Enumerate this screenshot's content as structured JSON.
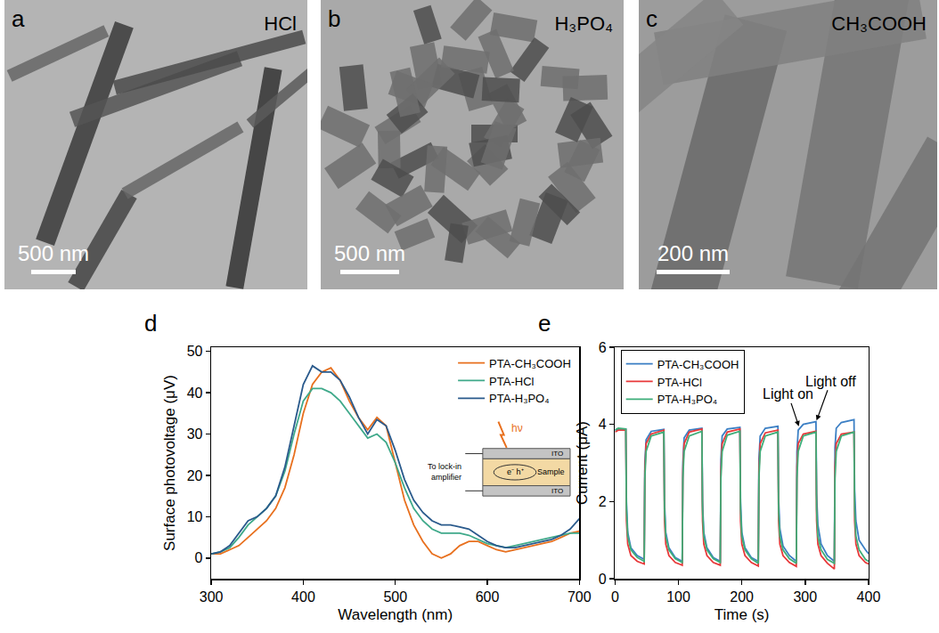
{
  "images": [
    {
      "label": "a",
      "title": "HCl",
      "scale_bar": "500 nm"
    },
    {
      "label": "b",
      "title": "H₃PO₄",
      "scale_bar": "500 nm"
    },
    {
      "label": "c",
      "title": "CH₃COOH",
      "scale_bar": "200 nm"
    }
  ],
  "chart_data": [
    {
      "type": "line",
      "panel_label": "d",
      "x_label": "Wavelength (nm)",
      "y_label": "Surface photovoltage (μV)",
      "x": [
        300,
        310,
        320,
        330,
        340,
        350,
        360,
        370,
        380,
        390,
        400,
        410,
        420,
        430,
        440,
        450,
        460,
        470,
        480,
        490,
        500,
        510,
        520,
        530,
        540,
        550,
        560,
        570,
        580,
        590,
        600,
        610,
        620,
        630,
        640,
        650,
        660,
        670,
        680,
        690,
        700
      ],
      "series": [
        {
          "name": "PTA-CH₃COOH",
          "color": "#e8701e",
          "values": [
            1,
            1,
            2,
            3,
            5,
            7,
            9,
            12,
            17,
            25,
            35,
            42,
            45,
            46,
            43,
            38,
            34,
            31,
            34,
            32,
            23,
            14,
            8,
            4,
            1,
            0,
            1,
            3,
            4,
            4,
            3,
            2,
            1.5,
            2,
            2.5,
            3,
            3.5,
            4,
            5,
            6,
            6.5
          ]
        },
        {
          "name": "PTA-HCl",
          "color": "#3fa98a",
          "values": [
            1,
            1.5,
            2.5,
            5,
            8,
            10,
            12,
            15,
            21,
            30,
            38,
            41,
            41,
            40,
            38,
            35,
            32,
            29,
            30,
            28,
            23,
            17,
            12,
            9,
            7,
            6,
            6,
            6,
            5.5,
            4.5,
            3.5,
            3,
            2.5,
            3,
            3.5,
            4,
            4.5,
            5,
            5.5,
            6,
            6
          ]
        },
        {
          "name": "PTA-H₃PO₄",
          "color": "#2a5a8c",
          "values": [
            1,
            1.5,
            3,
            6,
            9,
            10,
            12,
            15,
            22,
            32,
            42,
            46.5,
            45,
            45,
            43,
            39,
            34,
            30,
            33.5,
            32,
            26,
            19,
            14,
            11,
            9,
            8,
            8,
            7.5,
            7,
            5.5,
            4,
            3,
            2.5,
            2.5,
            3,
            3.5,
            4,
            4.5,
            5.5,
            7,
            9.5
          ]
        }
      ],
      "xlim": [
        300,
        700
      ],
      "xticks": [
        300,
        400,
        500,
        600,
        700
      ],
      "ylim": [
        -5,
        51
      ],
      "yticks": [
        0,
        10,
        20,
        30,
        40,
        50
      ],
      "grid": false,
      "legend": "top-right",
      "inset": {
        "light": "hν",
        "output": "To lock-in amplifier",
        "top": "ITO",
        "sample": "Sample",
        "carriers": "e⁻ h⁺",
        "bottom": "ITO"
      }
    },
    {
      "type": "line",
      "panel_label": "e",
      "x_label": "Time (s)",
      "y_label": "Current (μA)",
      "x": [
        0,
        5,
        17,
        18,
        20,
        25,
        35,
        46,
        47,
        49,
        57,
        77,
        78,
        80,
        85,
        95,
        106,
        107,
        109,
        117,
        137,
        138,
        140,
        145,
        155,
        166,
        167,
        169,
        177,
        197,
        198,
        200,
        205,
        215,
        226,
        227,
        229,
        237,
        257,
        258,
        260,
        265,
        275,
        286,
        287,
        289,
        297,
        317,
        318,
        320,
        325,
        335,
        346,
        347,
        349,
        357,
        377,
        378,
        380,
        385,
        395,
        400
      ],
      "series": [
        {
          "name": "PTA-CH₃COOH",
          "color": "#3b7fc4",
          "values": [
            3.85,
            3.88,
            3.88,
            2.0,
            1.2,
            0.8,
            0.6,
            0.5,
            3.0,
            3.6,
            3.82,
            3.87,
            2.0,
            1.2,
            0.8,
            0.55,
            0.45,
            3.0,
            3.65,
            3.85,
            3.9,
            2.0,
            1.2,
            0.8,
            0.55,
            0.45,
            3.1,
            3.7,
            3.88,
            3.92,
            2.0,
            1.2,
            0.8,
            0.55,
            0.45,
            3.1,
            3.7,
            3.9,
            3.95,
            2.1,
            1.3,
            0.85,
            0.6,
            0.45,
            3.3,
            3.85,
            4.0,
            4.07,
            2.2,
            1.4,
            0.9,
            0.6,
            0.45,
            3.4,
            3.9,
            4.05,
            4.12,
            2.3,
            1.5,
            1.0,
            0.75,
            0.65
          ]
        },
        {
          "name": "PTA-HCl",
          "color": "#e8393a",
          "values": [
            3.8,
            3.85,
            3.85,
            1.5,
            0.9,
            0.6,
            0.45,
            0.38,
            2.8,
            3.5,
            3.75,
            3.85,
            1.5,
            0.9,
            0.6,
            0.42,
            0.35,
            2.8,
            3.5,
            3.8,
            3.88,
            1.5,
            0.9,
            0.6,
            0.42,
            0.35,
            2.8,
            3.5,
            3.8,
            3.88,
            1.5,
            0.9,
            0.6,
            0.42,
            0.33,
            2.8,
            3.5,
            3.78,
            3.85,
            1.5,
            0.9,
            0.6,
            0.42,
            0.32,
            2.9,
            3.5,
            3.75,
            3.82,
            1.5,
            0.9,
            0.6,
            0.4,
            0.25,
            2.9,
            3.5,
            3.75,
            3.8,
            1.5,
            0.9,
            0.6,
            0.42,
            0.38
          ]
        },
        {
          "name": "PTA-H₃PO₄",
          "color": "#3fae7a",
          "values": [
            3.85,
            3.9,
            3.88,
            1.8,
            1.1,
            0.75,
            0.55,
            0.45,
            2.6,
            3.3,
            3.7,
            3.8,
            1.8,
            1.1,
            0.75,
            0.52,
            0.42,
            2.6,
            3.3,
            3.7,
            3.82,
            1.8,
            1.1,
            0.75,
            0.52,
            0.42,
            2.6,
            3.3,
            3.72,
            3.82,
            1.8,
            1.1,
            0.75,
            0.52,
            0.4,
            2.6,
            3.3,
            3.7,
            3.8,
            1.8,
            1.1,
            0.75,
            0.52,
            0.4,
            2.6,
            3.3,
            3.7,
            3.8,
            1.8,
            1.1,
            0.75,
            0.5,
            0.4,
            2.6,
            3.3,
            3.7,
            3.8,
            1.8,
            1.1,
            0.75,
            0.5,
            0.45
          ]
        }
      ],
      "xlim": [
        0,
        400
      ],
      "xticks": [
        0,
        100,
        200,
        300,
        400
      ],
      "ylim": [
        0,
        6
      ],
      "yticks": [
        0,
        2,
        4,
        6
      ],
      "grid": false,
      "legend": "top-left",
      "annotations": [
        {
          "text": "Light on",
          "x": 290,
          "y": 3.95
        },
        {
          "text": "Light off",
          "x": 318,
          "y": 4.1
        }
      ]
    }
  ]
}
